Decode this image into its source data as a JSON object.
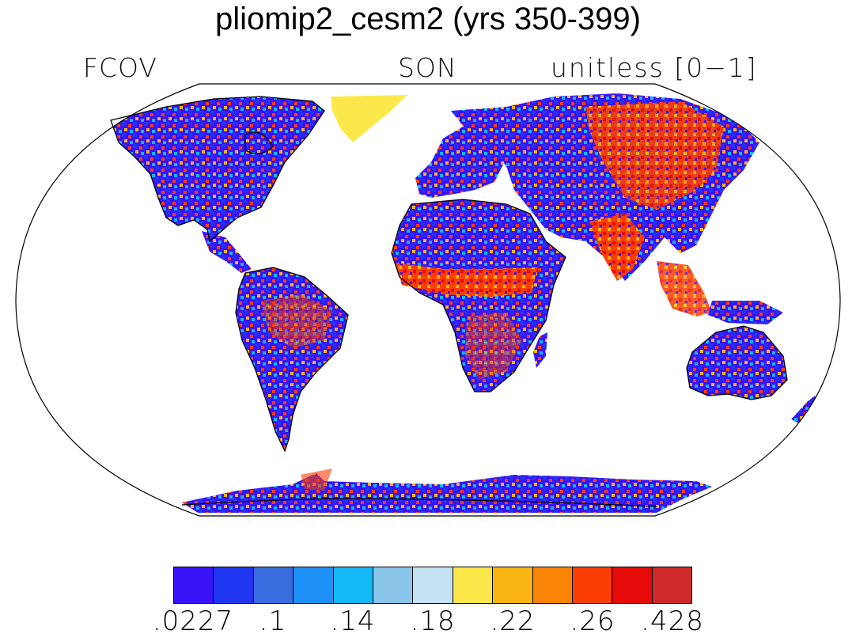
{
  "title": "pliomip2_cesm2 (yrs 350-399)",
  "variable": "FCOV",
  "season": "SON",
  "units": "unitless [0−1]",
  "projection": "robinson",
  "colorbar": {
    "colors": [
      "#3a12f8",
      "#2035f0",
      "#3a6ee0",
      "#1c90f5",
      "#14b8f5",
      "#8ac6ea",
      "#c4e2f4",
      "#fde84b",
      "#fbb512",
      "#fa8405",
      "#fb3e05",
      "#e60b08",
      "#d02a2a"
    ],
    "labels": [
      ".0227",
      ".1",
      ".14",
      ".18",
      ".22",
      ".26",
      ".428"
    ]
  }
}
